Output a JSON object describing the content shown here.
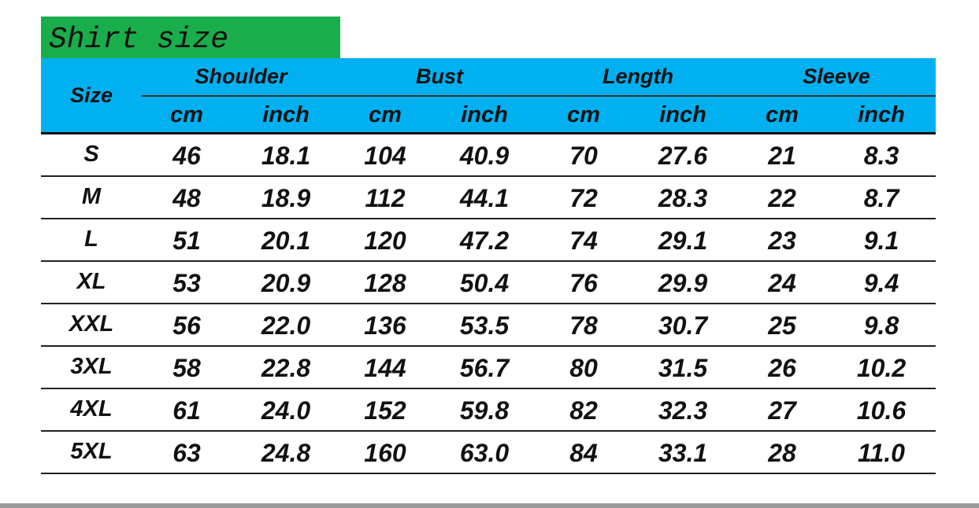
{
  "title": "Shirt size",
  "header": {
    "size": "Size",
    "groups": [
      "Shoulder",
      "Bust",
      "Length",
      "Sleeve"
    ],
    "units": [
      "cm",
      "inch",
      "cm",
      "inch",
      "cm",
      "inch",
      "cm",
      "inch"
    ]
  },
  "colors": {
    "title_bg": "#1aad4b",
    "header_bg": "#00b0f0"
  },
  "rows": [
    [
      "S",
      "46",
      "18.1",
      "104",
      "40.9",
      "70",
      "27.6",
      "21",
      "8.3"
    ],
    [
      "M",
      "48",
      "18.9",
      "112",
      "44.1",
      "72",
      "28.3",
      "22",
      "8.7"
    ],
    [
      "L",
      "51",
      "20.1",
      "120",
      "47.2",
      "74",
      "29.1",
      "23",
      "9.1"
    ],
    [
      "XL",
      "53",
      "20.9",
      "128",
      "50.4",
      "76",
      "29.9",
      "24",
      "9.4"
    ],
    [
      "XXL",
      "56",
      "22.0",
      "136",
      "53.5",
      "78",
      "30.7",
      "25",
      "9.8"
    ],
    [
      "3XL",
      "58",
      "22.8",
      "144",
      "56.7",
      "80",
      "31.5",
      "26",
      "10.2"
    ],
    [
      "4XL",
      "61",
      "24.0",
      "152",
      "59.8",
      "82",
      "32.3",
      "27",
      "10.6"
    ],
    [
      "5XL",
      "63",
      "24.8",
      "160",
      "63.0",
      "84",
      "33.1",
      "28",
      "11.0"
    ]
  ]
}
